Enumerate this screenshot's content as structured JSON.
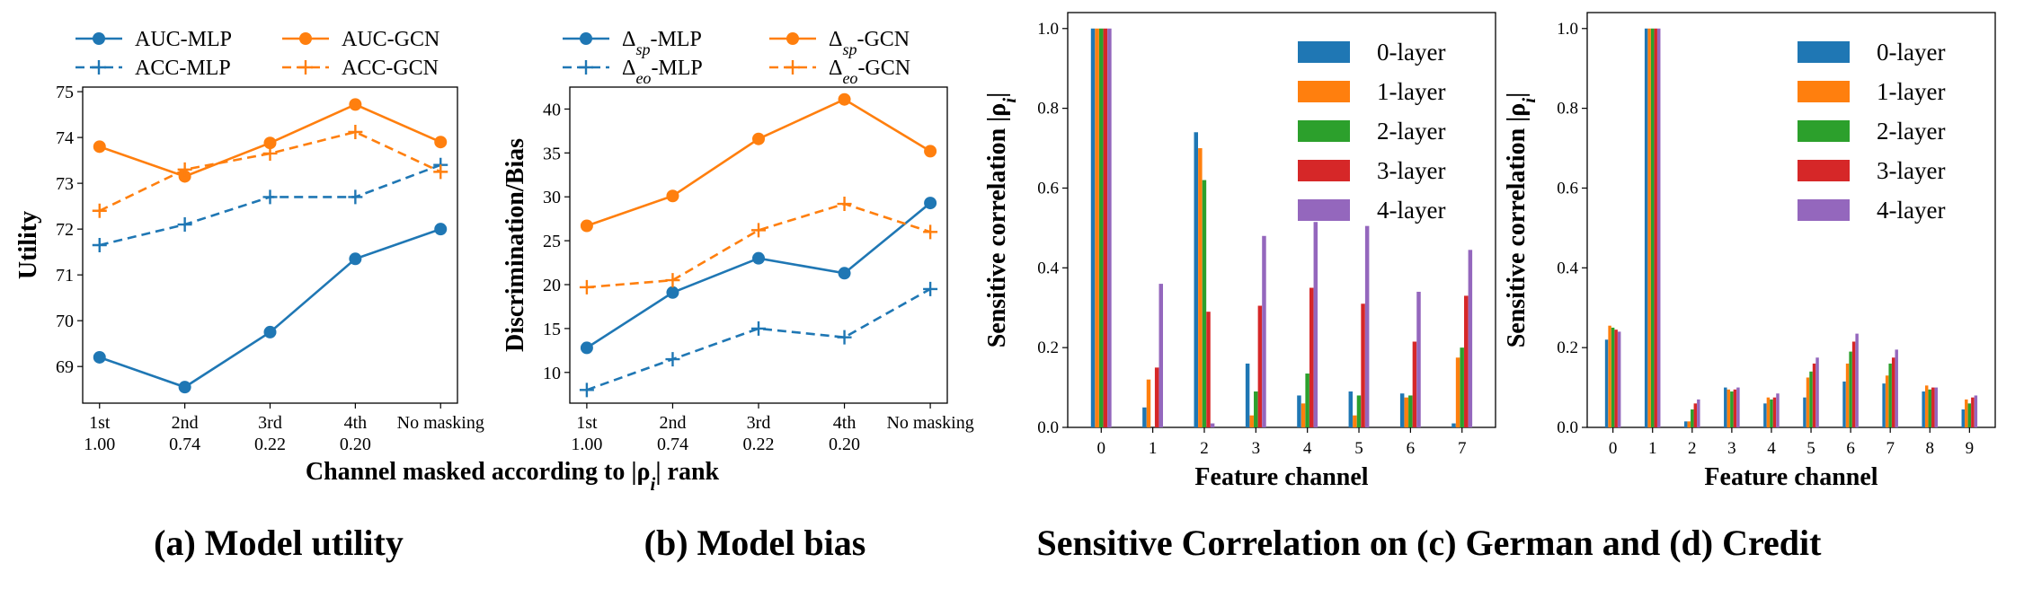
{
  "captions": {
    "a": "(a) Model utility",
    "b": "(b) Model bias",
    "cd": "Sensitive Correlation on (c) German and (d) Credit"
  },
  "shared_xlabel": "Channel masked according to |ρ_i| rank",
  "chart_data": [
    {
      "id": "utility",
      "type": "line",
      "ylabel": "Utility",
      "categories": [
        "1st\n1.00",
        "2nd\n0.74",
        "3rd\n0.22",
        "4th\n0.20",
        "No masking"
      ],
      "ylim": [
        68.2,
        75.1
      ],
      "yticks": [
        69,
        70,
        71,
        72,
        73,
        74,
        75
      ],
      "legend_placement": "above",
      "series": [
        {
          "name": "AUC-MLP",
          "color": "#1f77b4",
          "style": "solid",
          "marker": "circle",
          "values": [
            69.2,
            68.55,
            69.75,
            71.35,
            72.0
          ]
        },
        {
          "name": "AUC-GCN",
          "color": "#ff7f0e",
          "style": "solid",
          "marker": "circle",
          "values": [
            73.8,
            73.15,
            73.88,
            74.72,
            73.9
          ]
        },
        {
          "name": "ACC-MLP",
          "color": "#1f77b4",
          "style": "dashed",
          "marker": "plus",
          "values": [
            71.65,
            72.1,
            72.7,
            72.7,
            73.4
          ]
        },
        {
          "name": "ACC-GCN",
          "color": "#ff7f0e",
          "style": "dashed",
          "marker": "plus",
          "values": [
            72.4,
            73.3,
            73.65,
            74.12,
            73.25
          ]
        }
      ]
    },
    {
      "id": "bias",
      "type": "line",
      "ylabel": "Discrimination/Bias",
      "categories": [
        "1st\n1.00",
        "2nd\n0.74",
        "3rd\n0.22",
        "4th\n0.20",
        "No masking"
      ],
      "ylim": [
        6.5,
        42.5
      ],
      "yticks": [
        10,
        15,
        20,
        25,
        30,
        35,
        40
      ],
      "legend_placement": "above",
      "series": [
        {
          "name": "Δsp-MLP",
          "color": "#1f77b4",
          "style": "solid",
          "marker": "circle",
          "values": [
            12.8,
            19.1,
            23.0,
            21.3,
            29.3
          ]
        },
        {
          "name": "Δsp-GCN",
          "color": "#ff7f0e",
          "style": "solid",
          "marker": "circle",
          "values": [
            26.7,
            30.1,
            36.6,
            41.1,
            35.2
          ]
        },
        {
          "name": "Δeo-MLP",
          "color": "#1f77b4",
          "style": "dashed",
          "marker": "plus",
          "values": [
            8.0,
            11.5,
            15.0,
            14.0,
            19.5
          ]
        },
        {
          "name": "Δeo-GCN",
          "color": "#ff7f0e",
          "style": "dashed",
          "marker": "plus",
          "values": [
            19.7,
            20.5,
            26.2,
            29.2,
            26.0
          ]
        }
      ]
    },
    {
      "id": "german",
      "type": "bar",
      "xlabel": "Feature channel",
      "ylabel": "Sensitive correlation |ρ_i|",
      "categories": [
        "0",
        "1",
        "2",
        "3",
        "4",
        "5",
        "6",
        "7"
      ],
      "ylim": [
        0,
        1.04
      ],
      "yticks": [
        "0.0",
        "0.2",
        "0.4",
        "0.6",
        "0.8",
        "1.0"
      ],
      "legend_placement": "top-right",
      "series": [
        {
          "name": "0-layer",
          "color": "#1f77b4",
          "values": [
            1.0,
            0.05,
            0.74,
            0.16,
            0.08,
            0.09,
            0.085,
            0.01
          ]
        },
        {
          "name": "1-layer",
          "color": "#ff7f0e",
          "values": [
            1.0,
            0.12,
            0.7,
            0.03,
            0.06,
            0.03,
            0.075,
            0.175
          ]
        },
        {
          "name": "2-layer",
          "color": "#2ca02c",
          "values": [
            1.0,
            0.0,
            0.62,
            0.09,
            0.135,
            0.08,
            0.08,
            0.2
          ]
        },
        {
          "name": "3-layer",
          "color": "#d62728",
          "values": [
            1.0,
            0.15,
            0.29,
            0.305,
            0.35,
            0.31,
            0.215,
            0.33
          ]
        },
        {
          "name": "4-layer",
          "color": "#9467bd",
          "values": [
            1.0,
            0.36,
            0.01,
            0.48,
            0.515,
            0.505,
            0.34,
            0.445
          ]
        }
      ]
    },
    {
      "id": "credit",
      "type": "bar",
      "xlabel": "Feature channel",
      "ylabel": "Sensitive correlation |ρ_i|",
      "categories": [
        "0",
        "1",
        "2",
        "3",
        "4",
        "5",
        "6",
        "7",
        "8",
        "9"
      ],
      "ylim": [
        0,
        1.04
      ],
      "yticks": [
        "0.0",
        "0.2",
        "0.4",
        "0.6",
        "0.8",
        "1.0"
      ],
      "legend_placement": "top-right",
      "series": [
        {
          "name": "0-layer",
          "color": "#1f77b4",
          "values": [
            0.22,
            1.0,
            0.015,
            0.1,
            0.06,
            0.075,
            0.115,
            0.11,
            0.09,
            0.045
          ]
        },
        {
          "name": "1-layer",
          "color": "#ff7f0e",
          "values": [
            0.255,
            1.0,
            0.015,
            0.095,
            0.075,
            0.125,
            0.16,
            0.13,
            0.105,
            0.07
          ]
        },
        {
          "name": "2-layer",
          "color": "#2ca02c",
          "values": [
            0.25,
            1.0,
            0.045,
            0.09,
            0.07,
            0.14,
            0.19,
            0.16,
            0.095,
            0.06
          ]
        },
        {
          "name": "3-layer",
          "color": "#d62728",
          "values": [
            0.245,
            1.0,
            0.06,
            0.095,
            0.075,
            0.16,
            0.215,
            0.175,
            0.1,
            0.075
          ]
        },
        {
          "name": "4-layer",
          "color": "#9467bd",
          "values": [
            0.24,
            1.0,
            0.07,
            0.1,
            0.085,
            0.175,
            0.235,
            0.195,
            0.1,
            0.08
          ]
        }
      ]
    }
  ]
}
